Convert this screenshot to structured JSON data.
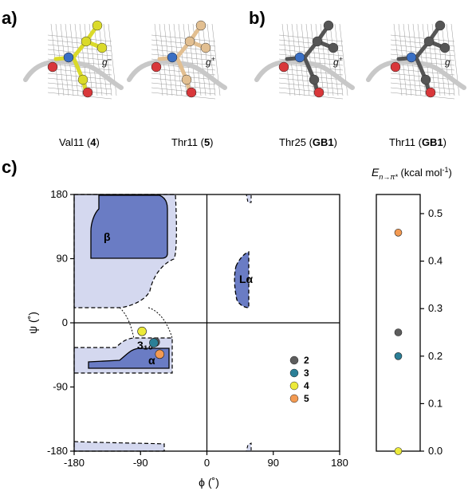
{
  "panels": {
    "a": {
      "letter": "a)"
    },
    "b": {
      "letter": "b)"
    },
    "c": {
      "letter": "c)"
    }
  },
  "structures": [
    {
      "label": "Val11 (",
      "bold": "4",
      "tail": ")",
      "rotamer": "g",
      "sign": "–",
      "color": "#dada2a"
    },
    {
      "label": "Thr11 (",
      "bold": "5",
      "tail": ")",
      "rotamer": "g",
      "sign": "+",
      "color": "#e2bf91"
    },
    {
      "label": "Thr25 (",
      "bold": "GB1",
      "tail": ")",
      "rotamer": "g",
      "sign": "+",
      "color": "#555555"
    },
    {
      "label": "Thr11 (",
      "bold": "GB1",
      "tail": ")",
      "rotamer": "g",
      "sign": "",
      "color": "#555555"
    }
  ],
  "ramachandran": {
    "xlabel": "ϕ (˚)",
    "ylabel": "ψ (˚)",
    "xlim": [
      -180,
      180
    ],
    "ylim": [
      -180,
      180
    ],
    "xticks": [
      -180,
      -90,
      0,
      90,
      180
    ],
    "yticks": [
      180,
      90,
      0,
      -90,
      -180
    ],
    "regions": [
      "β",
      "Lα",
      "3₁₀",
      "α"
    ],
    "region_fill_light": "#d4d8ef",
    "region_fill_dark": "#6a7cc4"
  },
  "chart_data": [
    {
      "type": "scatter",
      "title": "",
      "xlabel": "ϕ (˚)",
      "ylabel": "ψ (˚)",
      "xlim": [
        -180,
        180
      ],
      "ylim": [
        -180,
        180
      ],
      "series": [
        {
          "name": "2",
          "color": "#5d5d5d",
          "points": [
            [
              -70,
              -27
            ]
          ]
        },
        {
          "name": "3",
          "color": "#2b7f97",
          "points": [
            [
              -72,
              -28
            ]
          ]
        },
        {
          "name": "4",
          "color": "#ecea3a",
          "points": [
            [
              -88,
              -12
            ]
          ]
        },
        {
          "name": "5",
          "color": "#f39a52",
          "points": [
            [
              -64,
              -44
            ]
          ]
        }
      ]
    },
    {
      "type": "scatter",
      "title": "",
      "ylabel": "E",
      "ylabel_sub": "n→π*",
      "ylabel_unit": " (kcal mol",
      "ylabel_sup": "-1",
      "ylabel_end": ")",
      "ylim": [
        0,
        0.5
      ],
      "yticks": [
        "0.5",
        "0.4",
        "0.3",
        "0.2",
        "0.1",
        "0.0"
      ],
      "series": [
        {
          "name": "2",
          "color": "#5d5d5d",
          "values": [
            0.25
          ]
        },
        {
          "name": "3",
          "color": "#2b7f97",
          "values": [
            0.2
          ]
        },
        {
          "name": "4",
          "color": "#ecea3a",
          "values": [
            0.0
          ]
        },
        {
          "name": "5",
          "color": "#f39a52",
          "values": [
            0.46
          ]
        }
      ]
    }
  ]
}
